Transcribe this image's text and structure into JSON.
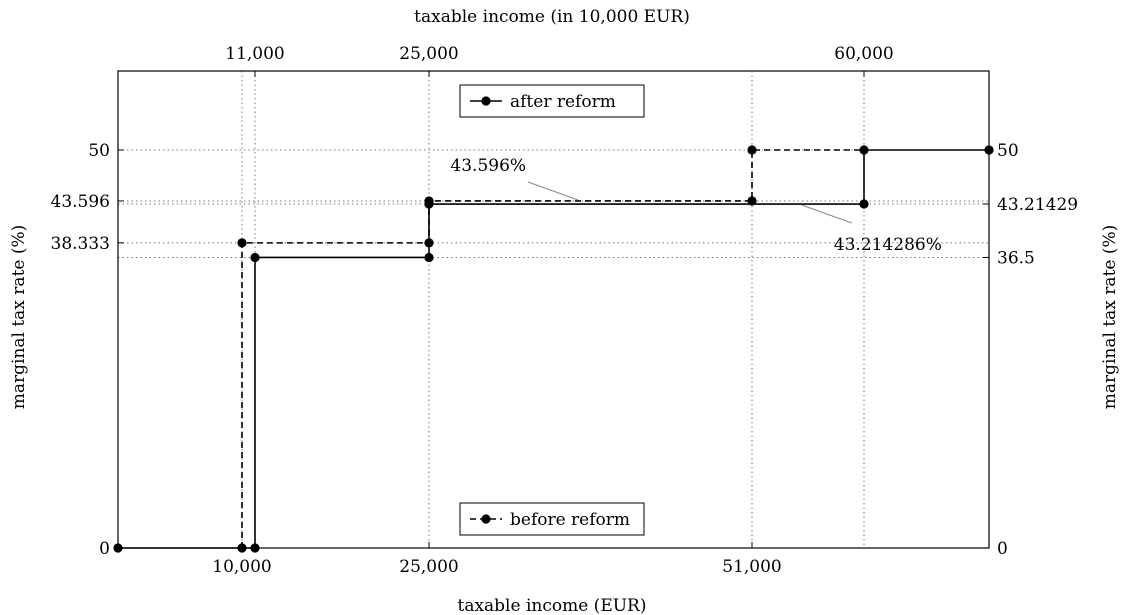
{
  "chart_data": {
    "type": "line",
    "xlabel_bottom": "taxable income (EUR)",
    "xlabel_top": "taxable income (in 10,000 EUR)",
    "ylabel_left": "marginal tax rate (%)",
    "ylabel_right": "marginal tax rate (%)",
    "xlim": [
      0,
      67000
    ],
    "ylim": [
      0,
      60
    ],
    "grid": "dotted at labeled ticks",
    "bottom_ticks": [
      {
        "value": 10000,
        "label": "10,000"
      },
      {
        "value": 25000,
        "label": "25,000"
      },
      {
        "value": 51000,
        "label": "51,000"
      }
    ],
    "top_ticks": [
      {
        "value": 11000,
        "label": "11,000"
      },
      {
        "value": 25000,
        "label": "25,000"
      },
      {
        "value": 60000,
        "label": "60,000"
      }
    ],
    "left_ticks": [
      {
        "value": 0,
        "label": "0"
      },
      {
        "value": 38.333,
        "label": "38.333"
      },
      {
        "value": 43.596,
        "label": "43.596"
      },
      {
        "value": 50,
        "label": "50"
      }
    ],
    "right_ticks": [
      {
        "value": 0,
        "label": "0"
      },
      {
        "value": 36.5,
        "label": "36.5"
      },
      {
        "value": 43.21429,
        "label": "43.21429"
      },
      {
        "value": 50,
        "label": "50"
      }
    ],
    "series": [
      {
        "name": "after reform",
        "style": "solid",
        "color": "#000000",
        "points": [
          [
            0,
            0
          ],
          [
            11000,
            0
          ],
          [
            11000,
            36.5
          ],
          [
            25000,
            36.5
          ],
          [
            25000,
            43.21429
          ],
          [
            60000,
            43.21429
          ],
          [
            60000,
            50
          ],
          [
            70000,
            50
          ]
        ],
        "markers": [
          [
            0,
            0
          ],
          [
            11000,
            0
          ],
          [
            11000,
            36.5
          ],
          [
            25000,
            36.5
          ],
          [
            25000,
            43.21429
          ],
          [
            60000,
            43.21429
          ],
          [
            60000,
            50
          ],
          [
            70000,
            50
          ]
        ]
      },
      {
        "name": "before reform",
        "style": "dashed",
        "color": "#000000",
        "points": [
          [
            10000,
            0
          ],
          [
            10000,
            38.333
          ],
          [
            25000,
            38.333
          ],
          [
            25000,
            43.596
          ],
          [
            51000,
            43.596
          ],
          [
            51000,
            50
          ],
          [
            60000,
            50
          ]
        ],
        "markers": [
          [
            10000,
            0
          ],
          [
            10000,
            38.333
          ],
          [
            25000,
            38.333
          ],
          [
            25000,
            43.596
          ],
          [
            51000,
            43.596
          ],
          [
            51000,
            50
          ]
        ]
      }
    ],
    "legend": [
      {
        "series": "after reform",
        "position": "top-center"
      },
      {
        "series": "before reform",
        "position": "bottom-center"
      }
    ],
    "annotations": [
      {
        "text": "43.596%",
        "points_to": [
          37000,
          43.596
        ],
        "placement": "above-left"
      },
      {
        "text": "43.214286%",
        "points_to": [
          55000,
          43.21429
        ],
        "placement": "below-right"
      }
    ]
  }
}
